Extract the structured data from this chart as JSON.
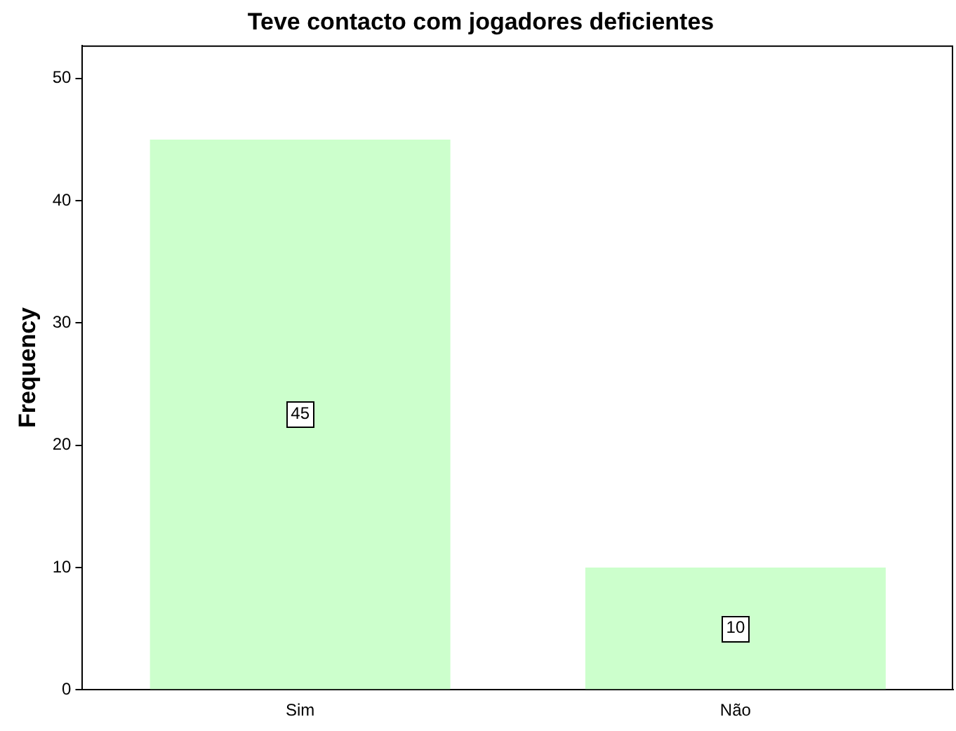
{
  "chart_data": {
    "type": "bar",
    "title": "Teve contacto com jogadores deficientes",
    "ylabel": "Frequency",
    "categories": [
      "Sim",
      "Não"
    ],
    "values": [
      45,
      10
    ],
    "color": "#ccffcc",
    "ylim": [
      0,
      52.7
    ],
    "yticks": [
      0,
      10,
      20,
      30,
      40,
      50
    ],
    "grid": false,
    "legend": false,
    "data_labels": true
  }
}
